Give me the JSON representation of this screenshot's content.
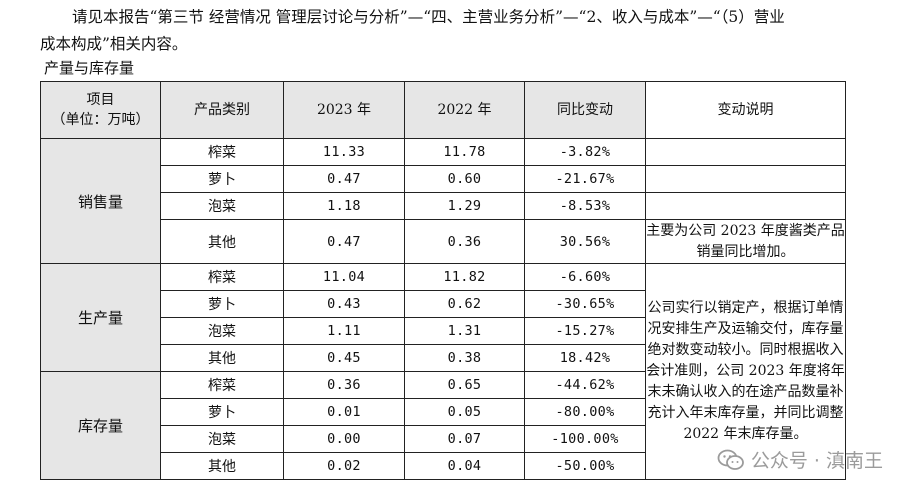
{
  "intro": {
    "line1": "请见本报告“第三节 经营情况 管理层讨论与分析”—“四、主营业务分析”—“2、收入与成本”—“（5）营业",
    "line2": "成本构成”相关内容。",
    "section_title": "产量与库存量"
  },
  "table": {
    "headers": {
      "item_line1": "项目",
      "item_line2": "（单位：万吨）",
      "category": "产品类别",
      "y2023": "2023 年",
      "y2022": "2022 年",
      "yoy": "同比变动",
      "note": "变动说明"
    },
    "groups": [
      {
        "name": "销售量",
        "rows": [
          {
            "category": "榨菜",
            "y2023": "11.33",
            "y2022": "11.78",
            "yoy": "-3.82%"
          },
          {
            "category": "萝卜",
            "y2023": "0.47",
            "y2022": "0.60",
            "yoy": "-21.67%"
          },
          {
            "category": "泡菜",
            "y2023": "1.18",
            "y2022": "1.29",
            "yoy": "-8.53%"
          },
          {
            "category": "其他",
            "y2023": "0.47",
            "y2022": "0.36",
            "yoy": "30.56%"
          }
        ]
      },
      {
        "name": "生产量",
        "rows": [
          {
            "category": "榨菜",
            "y2023": "11.04",
            "y2022": "11.82",
            "yoy": "-6.60%"
          },
          {
            "category": "萝卜",
            "y2023": "0.43",
            "y2022": "0.62",
            "yoy": "-30.65%"
          },
          {
            "category": "泡菜",
            "y2023": "1.11",
            "y2022": "1.31",
            "yoy": "-15.27%"
          },
          {
            "category": "其他",
            "y2023": "0.45",
            "y2022": "0.38",
            "yoy": "18.42%"
          }
        ]
      },
      {
        "name": "库存量",
        "rows": [
          {
            "category": "榨菜",
            "y2023": "0.36",
            "y2022": "0.65",
            "yoy": "-44.62%"
          },
          {
            "category": "萝卜",
            "y2023": "0.01",
            "y2022": "0.05",
            "yoy": "-80.00%"
          },
          {
            "category": "泡菜",
            "y2023": "0.00",
            "y2022": "0.07",
            "yoy": "-100.00%"
          },
          {
            "category": "其他",
            "y2023": "0.02",
            "y2022": "0.04",
            "yoy": "-50.00%"
          }
        ]
      }
    ],
    "notes": {
      "sales_other": "主要为公司 2023 年度酱类产品销量同比增加。",
      "production_inventory": "公司实行以销定产，根据订单情况安排生产及运输交付，库存量绝对数变动较小。同时根据收入会计准则，公司 2023 年度将年末未确认收入的在途产品数量补充计入年末库存量，并同比调整 2022 年末库存量。"
    }
  },
  "watermark": {
    "text": "公众号 · 滇南王",
    "icon": "wechat-icon"
  }
}
